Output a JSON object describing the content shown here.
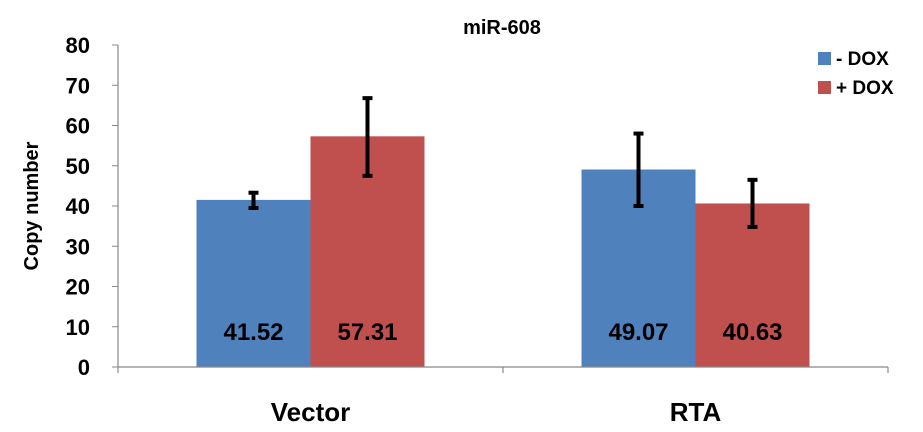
{
  "chart_data": {
    "type": "bar",
    "title": "miR-608",
    "ylabel": "Copy number",
    "xlabel": "",
    "categories": [
      "Vector",
      "RTA"
    ],
    "ylim": [
      0,
      80
    ],
    "yticks": [
      0,
      10,
      20,
      30,
      40,
      50,
      60,
      70,
      80
    ],
    "grid": false,
    "legend_position": "top-right",
    "series": [
      {
        "name": "- DOX",
        "color": "#4f81bd",
        "values": [
          41.52,
          49.07
        ],
        "labels": [
          "41.52",
          "49.07"
        ],
        "error": [
          [
            39.5,
            43.3
          ],
          [
            40.0,
            58.0
          ]
        ]
      },
      {
        "name": "+ DOX",
        "color": "#c0504d",
        "values": [
          57.31,
          40.63
        ],
        "labels": [
          "57.31",
          "40.63"
        ],
        "error": [
          [
            47.5,
            66.8
          ],
          [
            34.8,
            46.5
          ]
        ]
      }
    ]
  }
}
